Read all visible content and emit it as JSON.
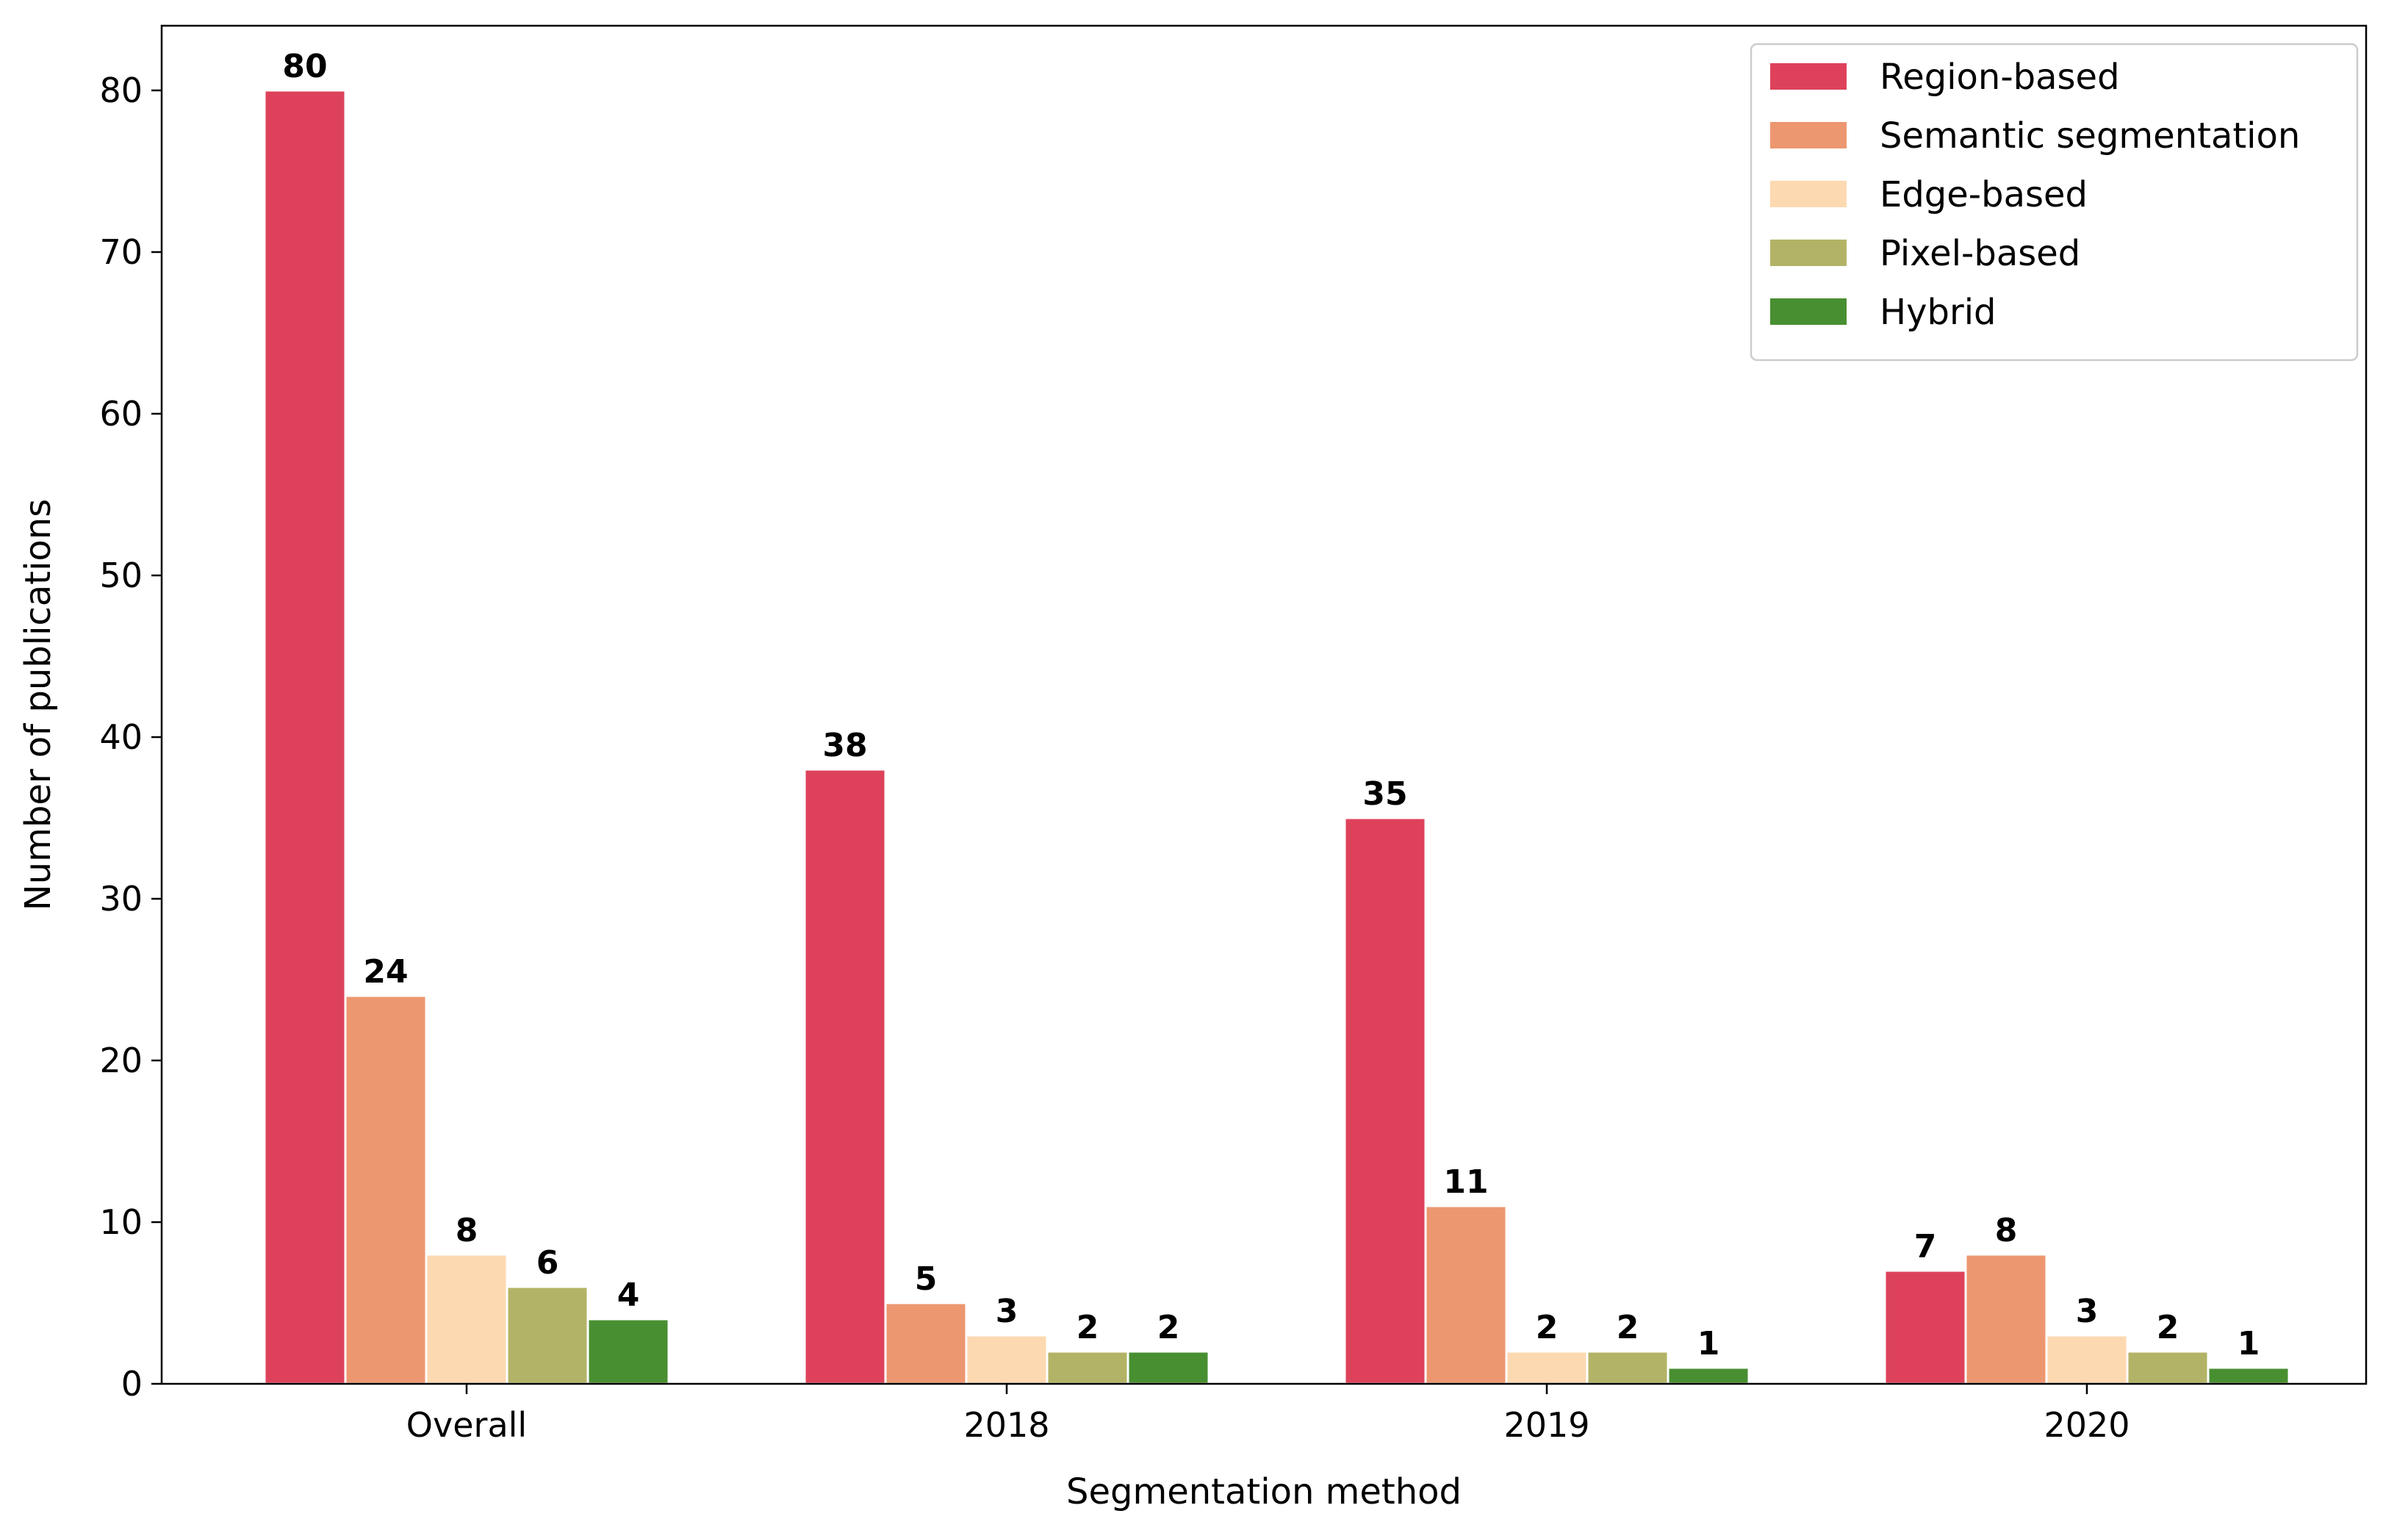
{
  "chart_data": {
    "type": "bar",
    "title": "",
    "xlabel": "Segmentation method",
    "ylabel": "Number of publications",
    "categories": [
      "Overall",
      "2018",
      "2019",
      "2020"
    ],
    "series": [
      {
        "name": "Region-based",
        "color": "#de425b",
        "values": [
          80,
          38,
          35,
          7
        ]
      },
      {
        "name": "Semantic segmentation",
        "color": "#ec9770",
        "values": [
          24,
          5,
          11,
          8
        ]
      },
      {
        "name": "Edge-based",
        "color": "#fdd9b1",
        "values": [
          8,
          3,
          2,
          3
        ]
      },
      {
        "name": "Pixel-based",
        "color": "#b3b367",
        "values": [
          6,
          2,
          2,
          2
        ]
      },
      {
        "name": "Hybrid",
        "color": "#488f31",
        "values": [
          4,
          2,
          1,
          1
        ]
      }
    ],
    "ylim": [
      0,
      84
    ],
    "yticks": [
      0,
      10,
      20,
      30,
      40,
      50,
      60,
      70,
      80
    ],
    "grid": false,
    "legend_position": "top-right",
    "data_labels": true
  }
}
